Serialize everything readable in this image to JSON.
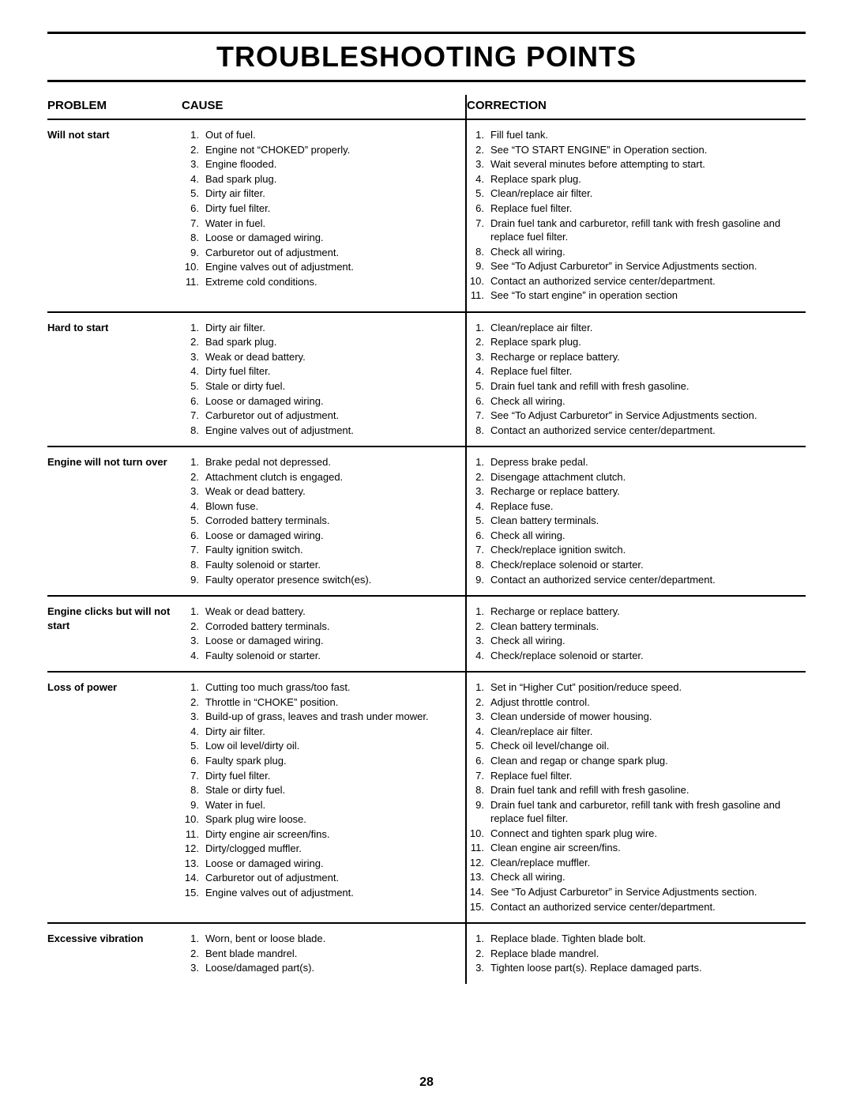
{
  "title": "TROUBLESHOOTING POINTS",
  "headers": {
    "problem": "PROBLEM",
    "cause": "CAUSE",
    "correction": "CORRECTION"
  },
  "page_number": "28",
  "sections": [
    {
      "problem": "Will not start",
      "cause": [
        "Out of fuel.",
        "Engine not “CHOKED” properly.",
        "Engine flooded.",
        "Bad spark plug.",
        "Dirty air filter.",
        "Dirty fuel filter.",
        "Water in fuel.",
        "Loose or damaged wiring.",
        "Carburetor out of adjustment.",
        "Engine valves out of adjustment.",
        "Extreme cold conditions."
      ],
      "correction": [
        "Fill fuel tank.",
        "See “TO START ENGINE” in Operation section.",
        "Wait several minutes before attempting to start.",
        "Replace spark plug.",
        "Clean/replace air filter.",
        "Replace fuel filter.",
        "Drain fuel tank and carburetor, refill tank with fresh gasoline and replace fuel filter.",
        "Check all wiring.",
        "See “To Adjust Carburetor” in Service Adjustments section.",
        "Contact an authorized service center/department.",
        "See “To start engine” in operation section"
      ]
    },
    {
      "problem": "Hard to start",
      "cause": [
        "Dirty air filter.",
        "Bad spark plug.",
        "Weak or dead battery.",
        "Dirty fuel filter.",
        "Stale or dirty fuel.",
        "Loose or damaged wiring.",
        "Carburetor out of adjustment.",
        "Engine valves out of adjustment."
      ],
      "correction": [
        "Clean/replace air filter.",
        "Replace spark plug.",
        "Recharge or replace battery.",
        "Replace fuel filter.",
        "Drain fuel tank and refill with fresh gasoline.",
        "Check all wiring.",
        "See “To Adjust Carburetor” in Service Adjustments section.",
        "Contact an authorized service center/department."
      ]
    },
    {
      "problem": "Engine will not turn over",
      "cause": [
        "Brake pedal not depressed.",
        "Attachment clutch is engaged.",
        "Weak or dead battery.",
        "Blown fuse.",
        "Corroded battery terminals.",
        "Loose or damaged wiring.",
        "Faulty ignition switch.",
        "Faulty solenoid or starter.",
        "Faulty operator presence switch(es)."
      ],
      "correction": [
        "Depress brake pedal.",
        "Disengage attachment clutch.",
        "Recharge or replace battery.",
        "Replace fuse.",
        "Clean battery terminals.",
        "Check all wiring.",
        "Check/replace ignition switch.",
        "Check/replace solenoid or starter.",
        "Contact an authorized service center/department."
      ]
    },
    {
      "problem": "Engine clicks but will not start",
      "cause": [
        "Weak or dead battery.",
        "Corroded battery terminals.",
        "Loose or damaged wiring.",
        "Faulty solenoid or starter."
      ],
      "correction": [
        "Recharge or replace battery.",
        "Clean battery terminals.",
        "Check all wiring.",
        "Check/replace solenoid or starter."
      ]
    },
    {
      "problem": "Loss of power",
      "cause": [
        "Cutting too much grass/too fast.",
        "Throttle in “CHOKE” position.",
        "Build-up of grass, leaves and trash under mower.",
        "Dirty air filter.",
        "Low oil level/dirty oil.",
        "Faulty spark plug.",
        "Dirty fuel filter.",
        "Stale or dirty fuel.",
        "Water in fuel.",
        "Spark plug wire loose.",
        "Dirty engine air screen/fins.",
        "Dirty/clogged muffler.",
        "Loose or damaged wiring.",
        "Carburetor out of adjustment.",
        "Engine valves out of adjustment."
      ],
      "correction": [
        "Set in “Higher Cut” position/reduce speed.",
        "Adjust throttle control.",
        "Clean underside of mower housing.",
        "Clean/replace air filter.",
        "Check oil level/change oil.",
        "Clean and regap or change spark plug.",
        "Replace fuel filter.",
        "Drain fuel tank and refill with fresh gasoline.",
        "Drain fuel tank and carburetor, refill tank with fresh gasoline and replace fuel filter.",
        "Connect and tighten spark plug wire.",
        "Clean engine air screen/fins.",
        "Clean/replace muffler.",
        "Check all wiring.",
        "See “To Adjust Carburetor” in Service Adjustments section.",
        "Contact an authorized service center/department."
      ]
    },
    {
      "problem": "Excessive vibration",
      "last": true,
      "cause": [
        "Worn, bent or loose blade.",
        "Bent blade mandrel.",
        "Loose/damaged part(s)."
      ],
      "correction": [
        "Replace blade.  Tighten blade bolt.",
        "Replace blade mandrel.",
        "Tighten loose part(s).  Replace damaged parts."
      ]
    }
  ]
}
